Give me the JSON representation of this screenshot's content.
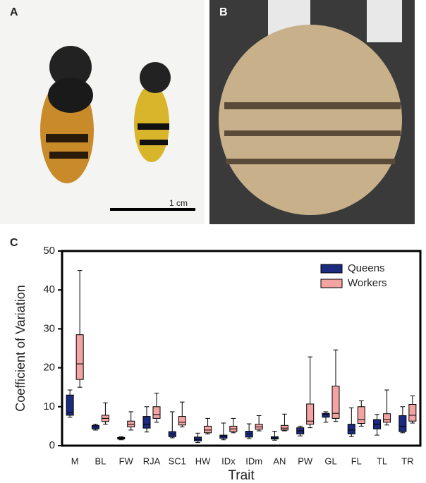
{
  "panels": {
    "a": "A",
    "b": "B",
    "c": "C"
  },
  "scale_bar": "1 cm",
  "chart_data": {
    "type": "box",
    "ylabel": "Coefficient of Variation",
    "xlabel": "Trait",
    "categories": [
      "M",
      "BL",
      "FW",
      "RJA",
      "SC1",
      "HW",
      "IDx",
      "IDm",
      "AN",
      "PW",
      "GL",
      "FL",
      "TL",
      "TR"
    ],
    "ylim": [
      0,
      50
    ],
    "yticks": [
      0,
      10,
      20,
      30,
      40,
      50
    ],
    "legend": "top-right",
    "series": [
      {
        "name": "Queens",
        "color": "#1c2a80",
        "values": [
          [
            7.3,
            7.8,
            8.5,
            13,
            14.3
          ],
          [
            4,
            4.3,
            4.8,
            5.2,
            5.5
          ],
          [
            1.5,
            1.7,
            1.9,
            2.1,
            2.3
          ],
          [
            3.5,
            4.5,
            5.5,
            7.5,
            10
          ],
          [
            2,
            2.3,
            3,
            3.6,
            8.7
          ],
          [
            0.8,
            1.2,
            1.6,
            2.2,
            3.2
          ],
          [
            1.5,
            1.9,
            2.3,
            2.7,
            5.8
          ],
          [
            1.8,
            2.2,
            3,
            3.7,
            5.6
          ],
          [
            1.4,
            1.7,
            2,
            2.3,
            3.7
          ],
          [
            2.5,
            3,
            3.8,
            4.6,
            5
          ],
          [
            6,
            7.3,
            8,
            8.3,
            8.7
          ],
          [
            2.3,
            3,
            4,
            5.5,
            9.7
          ],
          [
            2.7,
            4.3,
            5.5,
            6.7,
            8
          ],
          [
            3.3,
            3.6,
            5,
            7.7,
            10
          ]
        ]
      },
      {
        "name": "Workers",
        "color": "#f4a3a3",
        "values": [
          [
            15,
            17,
            21,
            28.5,
            45
          ],
          [
            5.5,
            6.2,
            7,
            7.8,
            11
          ],
          [
            4,
            4.8,
            5.5,
            6.3,
            8.7
          ],
          [
            6,
            7,
            8,
            10,
            13.5
          ],
          [
            4.8,
            5.3,
            6,
            7.5,
            11.2
          ],
          [
            3,
            3.3,
            4,
            5,
            7
          ],
          [
            3.3,
            3.6,
            4.3,
            5,
            7
          ],
          [
            3.8,
            4.2,
            4.8,
            5.5,
            7.7
          ],
          [
            3.8,
            4,
            4.5,
            5.2,
            8.1
          ],
          [
            4.6,
            5.5,
            6.3,
            10.7,
            22.8
          ],
          [
            6.2,
            7,
            8.3,
            15.3,
            24.6
          ],
          [
            5,
            5.7,
            6.7,
            10,
            11.5
          ],
          [
            5.3,
            6,
            6.7,
            8.2,
            14.3
          ],
          [
            5.8,
            6.3,
            7.8,
            10.6,
            12.8
          ]
        ]
      }
    ]
  }
}
